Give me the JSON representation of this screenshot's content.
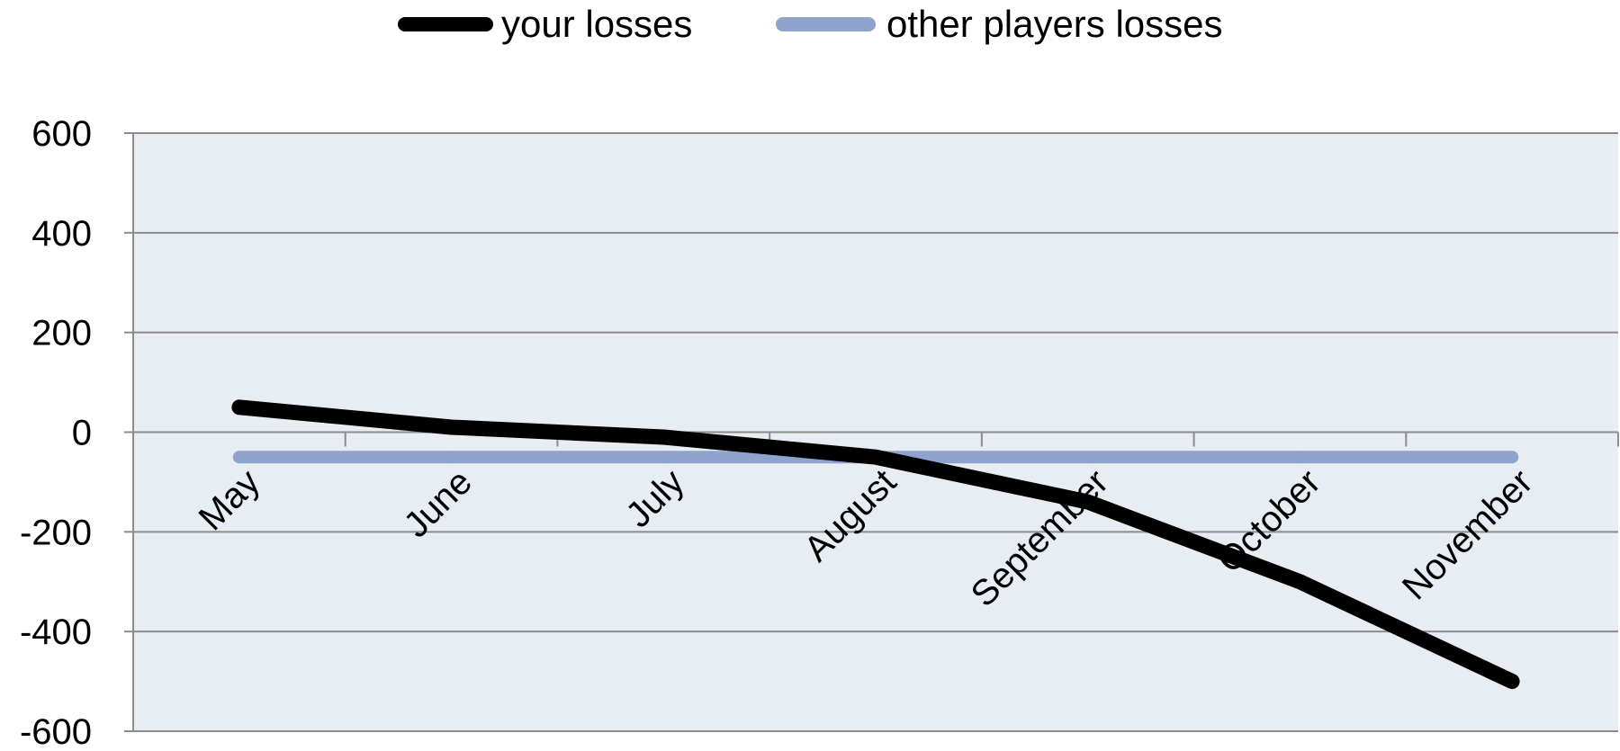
{
  "chart_data": {
    "type": "line",
    "categories": [
      "May",
      "June",
      "July",
      "August",
      "September",
      "October",
      "November"
    ],
    "series": [
      {
        "name": "your losses",
        "color": "#000000",
        "values": [
          50,
          10,
          -10,
          -50,
          -140,
          -300,
          -500
        ]
      },
      {
        "name": "other players losses",
        "color": "#8fa4cc",
        "values": [
          -50,
          -50,
          -50,
          -50,
          -50,
          -50,
          -50
        ]
      }
    ],
    "yticks": [
      "600",
      "400",
      "200",
      "0",
      "-200",
      "-400",
      "-600"
    ],
    "ylim": [
      -600,
      600
    ],
    "grid": true,
    "legend_position": "top",
    "plot_background": "#e8ecf3",
    "gridline_color": "#8c8c8c"
  }
}
